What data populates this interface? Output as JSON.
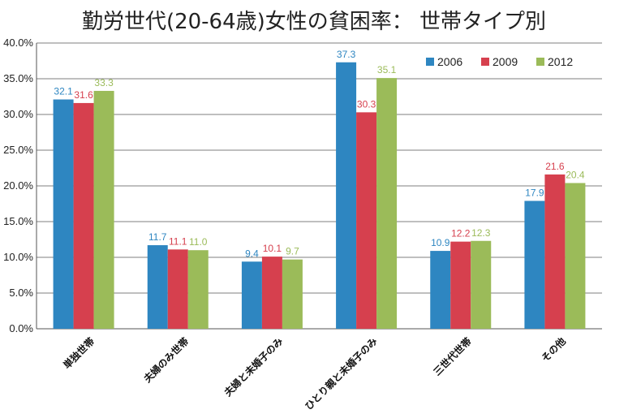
{
  "chart_data": {
    "type": "bar",
    "title": "勤労世代(20-64歳)女性の貧困率： 世帯タイプ別",
    "categories": [
      "単独世帯",
      "夫婦のみ世帯",
      "夫婦と未婚子のみ",
      "ひとり親と未婚子のみ",
      "三世代世帯",
      "その他"
    ],
    "series": [
      {
        "name": "2006",
        "color": "#2e86c1",
        "values": [
          32.1,
          11.7,
          9.4,
          37.3,
          10.9,
          17.9
        ]
      },
      {
        "name": "2009",
        "color": "#d6404e",
        "values": [
          31.6,
          11.1,
          10.1,
          30.3,
          12.2,
          21.6
        ]
      },
      {
        "name": "2012",
        "color": "#9bbb59",
        "values": [
          33.3,
          11.0,
          9.7,
          35.1,
          12.3,
          20.4
        ]
      }
    ],
    "data_labels": [
      [
        "32.1",
        "11.7",
        "9.4",
        "37.3",
        "10.9",
        "17.9"
      ],
      [
        "31.6",
        "11.1",
        "10.1",
        "30.3",
        "12.2",
        "21.6"
      ],
      [
        "33.3",
        "11.0",
        "9.7",
        "35.1",
        "12.3",
        "20.4"
      ]
    ],
    "yticks": [
      "0.0%",
      "5.0%",
      "10.0%",
      "15.0%",
      "20.0%",
      "25.0%",
      "30.0%",
      "35.0%",
      "40.0%"
    ],
    "ylim": [
      0,
      40
    ],
    "xlabel": "",
    "ylabel": "",
    "grid": true,
    "legend_position": "top-right"
  }
}
